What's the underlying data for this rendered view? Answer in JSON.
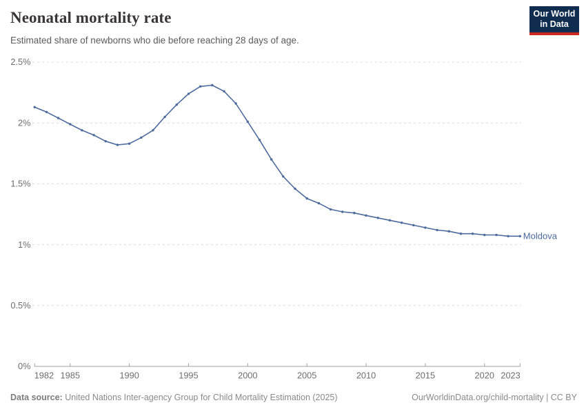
{
  "header": {
    "title": "Neonatal mortality rate",
    "subtitle": "Estimated share of newborns who die before reaching 28 days of age.",
    "logo": {
      "line1": "Our World",
      "line2": "in Data",
      "bg_color": "#102D4F",
      "bar_color": "#CB2A22"
    }
  },
  "chart_data": {
    "type": "line",
    "title": "Neonatal mortality rate",
    "subtitle": "Estimated share of newborns who die before reaching 28 days of age.",
    "xlabel": "",
    "ylabel": "",
    "unit": "%",
    "xlim": [
      1982,
      2023
    ],
    "ylim": [
      0,
      2.5
    ],
    "grid": "horizontal dashed",
    "legend_position": "end-of-line label",
    "x_ticks": [
      1982,
      1985,
      1990,
      1995,
      2000,
      2005,
      2010,
      2015,
      2020,
      2023
    ],
    "y_ticks": [
      0,
      0.5,
      1,
      1.5,
      2,
      2.5
    ],
    "y_tick_labels": [
      "0%",
      "0.5%",
      "1%",
      "1.5%",
      "2%",
      "2.5%"
    ],
    "series": [
      {
        "name": "Moldova",
        "color": "#4C6A9C",
        "x": [
          1982,
          1983,
          1984,
          1985,
          1986,
          1987,
          1988,
          1989,
          1990,
          1991,
          1992,
          1993,
          1994,
          1995,
          1996,
          1997,
          1998,
          1999,
          2000,
          2001,
          2002,
          2003,
          2004,
          2005,
          2006,
          2007,
          2008,
          2009,
          2010,
          2011,
          2012,
          2013,
          2014,
          2015,
          2016,
          2017,
          2018,
          2019,
          2020,
          2021,
          2022,
          2023
        ],
        "values": [
          2.13,
          2.09,
          2.04,
          1.99,
          1.94,
          1.9,
          1.85,
          1.82,
          1.83,
          1.88,
          1.94,
          2.05,
          2.15,
          2.24,
          2.3,
          2.31,
          2.26,
          2.16,
          2.01,
          1.86,
          1.7,
          1.56,
          1.46,
          1.38,
          1.34,
          1.29,
          1.27,
          1.26,
          1.24,
          1.22,
          1.2,
          1.18,
          1.16,
          1.14,
          1.12,
          1.11,
          1.09,
          1.09,
          1.08,
          1.08,
          1.07,
          1.07
        ]
      }
    ]
  },
  "footer": {
    "data_source_label": "Data source:",
    "data_source": "United Nations Inter-agency Group for Child Mortality Estimation (2025)",
    "attribution": "OurWorldinData.org/child-mortality | CC BY"
  }
}
